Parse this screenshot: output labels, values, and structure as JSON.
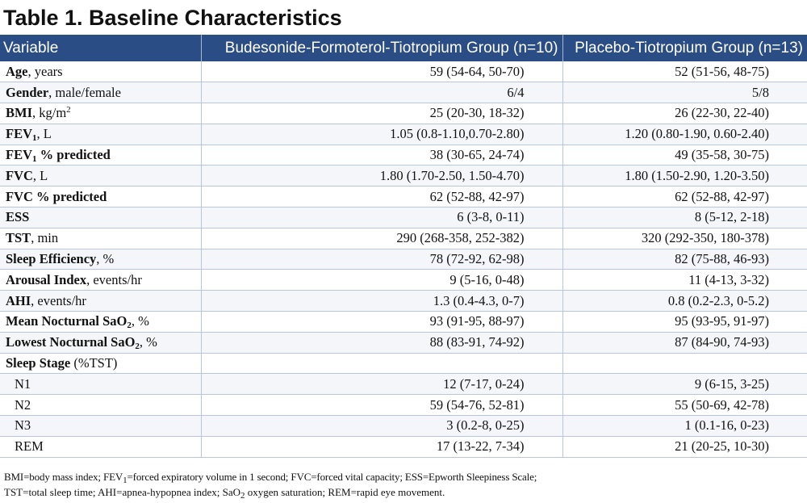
{
  "title": "Table 1. Baseline Characteristics",
  "columns": {
    "variable": "Variable",
    "group1": "Budesonide-Formoterol-Tiotropium Group (n=10)",
    "group2": "Placebo-Tiotropium Group (n=13)"
  },
  "rows": [
    {
      "bold": "Age",
      "rest": ", years",
      "g1": "59 (54-64, 50-70)",
      "g2": "52 (51-56, 48-75)"
    },
    {
      "bold": "Gender",
      "rest": ", male/female",
      "g1": "6/4",
      "g2": "5/8"
    },
    {
      "bold": "BMI",
      "rest": ", kg/m",
      "sup": "2",
      "g1": "25 (20-30, 18-32)",
      "g2": "26 (22-30, 22-40)"
    },
    {
      "bold": "FEV",
      "boldsub": "1",
      "rest": ", L",
      "g1": "1.05 (0.8-1.10,0.70-2.80)",
      "g2": "1.20 (0.80-1.90, 0.60-2.40)"
    },
    {
      "bold": "FEV",
      "boldsub": "1",
      "boldtail": " % predicted",
      "rest": "",
      "g1": "38 (30-65, 24-74)",
      "g2": "49 (35-58, 30-75)"
    },
    {
      "bold": "FVC",
      "rest": ", L",
      "g1": "1.80 (1.70-2.50, 1.50-4.70)",
      "g2": "1.80 (1.50-2.90, 1.20-3.50)"
    },
    {
      "bold": "FVC % predicted",
      "rest": "",
      "g1": "62 (52-88, 42-97)",
      "g2": "62 (52-88, 42-97)"
    },
    {
      "bold": "ESS",
      "rest": "",
      "g1": "6 (3-8, 0-11)",
      "g2": "8 (5-12, 2-18)"
    },
    {
      "bold": "TST",
      "rest": ", min",
      "g1": "290 (268-358, 252-382)",
      "g2": "320 (292-350, 180-378)"
    },
    {
      "bold": "Sleep Efficiency",
      "rest": ", %",
      "g1": "78 (72-92, 62-98)",
      "g2": "82 (75-88, 46-93)"
    },
    {
      "bold": "Arousal Index",
      "rest": ", events/hr",
      "g1": "9 (5-16, 0-48)",
      "g2": "11 (4-13, 3-32)"
    },
    {
      "bold": "AHI",
      "rest": ", events/hr",
      "g1": "1.3 (0.4-4.3, 0-7)",
      "g2": "0.8 (0.2-2.3, 0-5.2)"
    },
    {
      "bold": "Mean Nocturnal SaO",
      "boldsub": "2",
      "rest": ", %",
      "g1": "93 (91-95, 88-97)",
      "g2": "95 (93-95, 91-97)"
    },
    {
      "bold": "Lowest Nocturnal SaO",
      "boldsub": "2",
      "rest": ", %",
      "g1": "88 (83-91, 74-92)",
      "g2": "87 (84-90, 74-93)"
    },
    {
      "bold": "Sleep Stage",
      "rest": " (%TST)",
      "g1": "",
      "g2": ""
    },
    {
      "plain": "N1",
      "g1": "12 (7-17, 0-24)",
      "g2": "9 (6-15, 3-25)"
    },
    {
      "plain": "N2",
      "g1": "59 (54-76, 52-81)",
      "g2": "55 (50-69, 42-78)"
    },
    {
      "plain": "N3",
      "g1": "3 (0.2-8, 0-25)",
      "g2": "1 (0.1-16, 0-23)"
    },
    {
      "plain": "REM",
      "g1": "17 (13-22, 7-34)",
      "g2": "21 (20-25, 10-30)"
    }
  ],
  "footnote": {
    "line1a": "BMI=body mass index; FEV",
    "line1sub": "1",
    "line1b": "=forced expiratory volume in 1 second; FVC=forced vital capacity; ESS=Epworth Sleepiness Scale;",
    "line2a": "TST=total sleep time; AHI=apnea-hypopnea index; SaO",
    "line2sub": "2",
    "line2b": " oxygen saturation; REM=rapid eye movement."
  }
}
